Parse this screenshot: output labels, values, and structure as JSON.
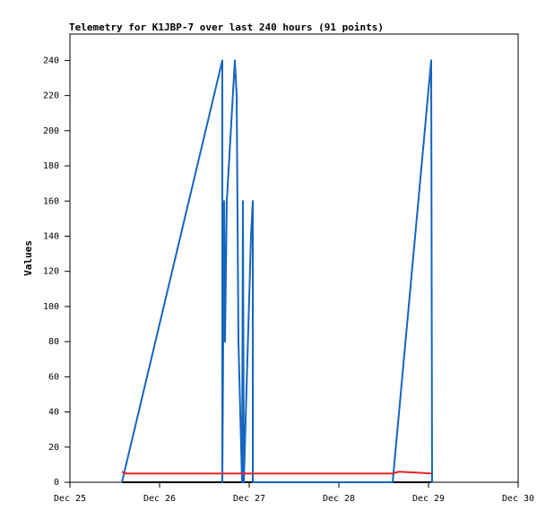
{
  "chart_data": {
    "type": "line",
    "title": "Telemetry for K1JBP-7 over last 240 hours (91 points)",
    "y_label": "Values",
    "xlim": [
      0,
      5
    ],
    "xticks": [
      {
        "value": 0,
        "label": "Dec 25"
      },
      {
        "value": 1,
        "label": "Dec 26"
      },
      {
        "value": 2,
        "label": "Dec 27"
      },
      {
        "value": 3,
        "label": "Dec 28"
      },
      {
        "value": 4,
        "label": "Dec 29"
      },
      {
        "value": 5,
        "label": "Dec 30"
      }
    ],
    "ylim": [
      0,
      255
    ],
    "yticks": [
      0,
      20,
      40,
      60,
      80,
      100,
      120,
      140,
      160,
      180,
      200,
      220,
      240
    ],
    "grid": false,
    "series": [
      {
        "color": "#000000",
        "x": [
          0.58,
          4.03
        ],
        "values": [
          0,
          0
        ]
      },
      {
        "color": "#1565c0",
        "x": [
          0.58,
          1.7,
          1.7,
          1.72,
          1.73,
          1.75,
          1.84,
          1.86,
          1.88,
          1.9,
          1.92,
          1.93,
          1.94,
          2.02,
          2.04,
          2.04,
          3.6,
          4.03,
          4.04
        ],
        "values": [
          0,
          240,
          0,
          160,
          80,
          160,
          240,
          220,
          80,
          40,
          0,
          160,
          0,
          140,
          160,
          0,
          0,
          240,
          0
        ]
      },
      {
        "color": "#e52222",
        "x": [
          0.58,
          0.62,
          3.6,
          3.67,
          3.87,
          4.03
        ],
        "values": [
          6,
          5,
          5,
          6,
          5.5,
          5
        ]
      }
    ]
  }
}
